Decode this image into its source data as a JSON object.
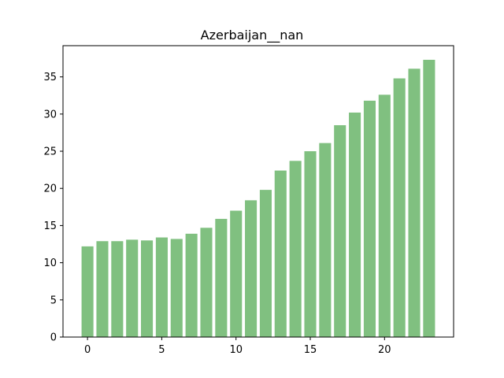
{
  "chart_data": {
    "type": "bar",
    "title": "Azerbaijan__nan",
    "xlabel": "",
    "ylabel": "",
    "x": [
      0,
      1,
      2,
      3,
      4,
      5,
      6,
      7,
      8,
      9,
      10,
      11,
      12,
      13,
      14,
      15,
      16,
      17,
      18,
      19,
      20,
      21,
      22,
      23
    ],
    "values": [
      12.2,
      12.9,
      12.9,
      13.1,
      13.0,
      13.4,
      13.2,
      13.9,
      14.7,
      15.9,
      17.0,
      18.4,
      19.8,
      22.4,
      23.7,
      25.0,
      26.1,
      28.5,
      30.2,
      31.8,
      32.6,
      34.8,
      36.1,
      37.3
    ],
    "xlim": [
      -1.65,
      24.65
    ],
    "ylim": [
      0,
      39.2
    ],
    "xticks": [
      0,
      5,
      10,
      15,
      20
    ],
    "yticks": [
      0,
      5,
      10,
      15,
      20,
      25,
      30,
      35
    ],
    "bar_width": 0.8,
    "bar_color": "#80c080",
    "grid": false,
    "legend": "none"
  }
}
